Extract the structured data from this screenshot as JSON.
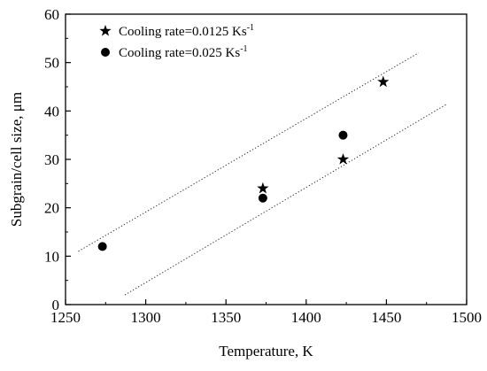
{
  "chart_data": {
    "type": "scatter",
    "xlabel": "Temperature, K",
    "ylabel": "Subgrain/cell size, μm",
    "xlim": [
      1250,
      1500
    ],
    "ylim": [
      0,
      60
    ],
    "xticks": [
      1250,
      1300,
      1350,
      1400,
      1450,
      1500
    ],
    "yticks": [
      0,
      10,
      20,
      30,
      40,
      50,
      60
    ],
    "grid": false,
    "legend_position": "top-left",
    "series": [
      {
        "name": "Cooling rate=0.0125 Ks",
        "name_superscript": "-1",
        "marker": "star",
        "x": [
          1373,
          1423,
          1448
        ],
        "y": [
          24,
          30,
          46
        ]
      },
      {
        "name": "Cooling rate=0.025 Ks",
        "name_superscript": "-1",
        "marker": "circle",
        "x": [
          1273,
          1373,
          1423
        ],
        "y": [
          12,
          22,
          35
        ]
      }
    ],
    "bound_lines": [
      {
        "style": "dotted",
        "x": [
          1258,
          1470
        ],
        "y": [
          11,
          52
        ]
      },
      {
        "style": "dotted",
        "x": [
          1287,
          1488
        ],
        "y": [
          2,
          41.5
        ]
      }
    ]
  }
}
